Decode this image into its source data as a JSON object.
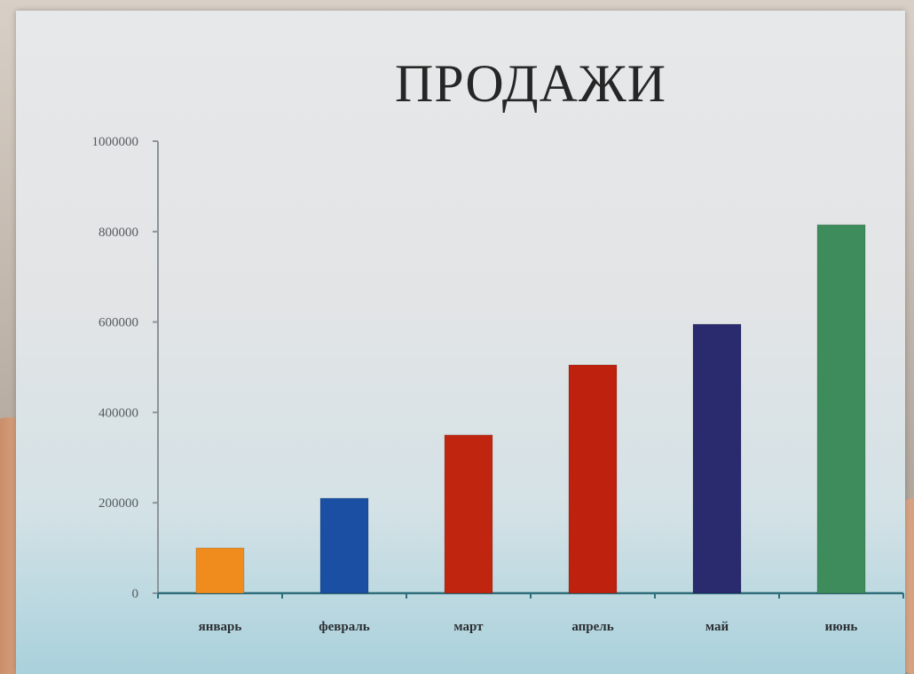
{
  "chart_data": {
    "type": "bar",
    "title": "ПРОДАЖИ",
    "categories": [
      "январь",
      "февраль",
      "март",
      "апрель",
      "май",
      "июнь"
    ],
    "values": [
      100000,
      210000,
      350000,
      505000,
      595000,
      815000
    ],
    "colors": [
      "#f08c1e",
      "#1a4fa3",
      "#c0260f",
      "#be210e",
      "#2a2a6e",
      "#3e8c5c"
    ],
    "ylim": [
      0,
      1000000
    ],
    "yticks": [
      "0",
      "200000",
      "400000",
      "600000",
      "800000",
      "1000000"
    ],
    "xlabel": "",
    "ylabel": "",
    "grid": false,
    "legend": "none"
  }
}
